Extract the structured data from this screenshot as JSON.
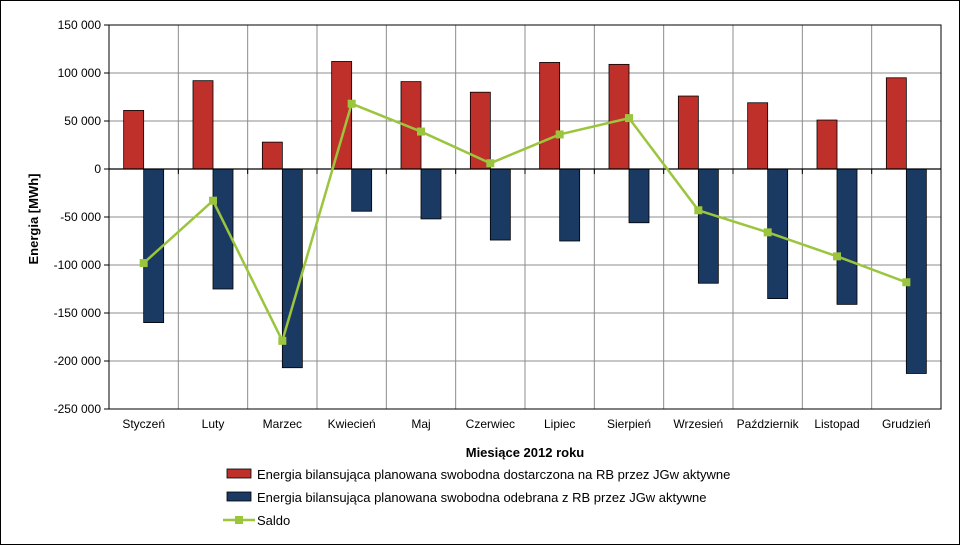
{
  "chart_data": {
    "type": "bar",
    "categories": [
      "Styczeń",
      "Luty",
      "Marzec",
      "Kwiecień",
      "Maj",
      "Czerwiec",
      "Lipiec",
      "Sierpień",
      "Wrzesień",
      "Październik",
      "Listopad",
      "Grudzień"
    ],
    "series": [
      {
        "name": "Energia bilansująca planowana swobodna dostarczona na RB przez JGw aktywne",
        "type": "bar",
        "color": "#C0302B",
        "values": [
          61000,
          92000,
          28000,
          112000,
          91000,
          80000,
          111000,
          109000,
          76000,
          69000,
          51000,
          95000
        ]
      },
      {
        "name": "Energia bilansująca planowana swobodna odebrana z RB przez JGw aktywne",
        "type": "bar",
        "color": "#1B3A63",
        "values": [
          -160000,
          -125000,
          -207000,
          -44000,
          -52000,
          -74000,
          -75000,
          -56000,
          -119000,
          -135000,
          -141000,
          -213000
        ]
      },
      {
        "name": "Saldo",
        "type": "line",
        "color": "#9BC53D",
        "values": [
          -98000,
          -33000,
          -179000,
          68000,
          39000,
          6000,
          36000,
          53000,
          -43000,
          -66000,
          -91000,
          -118000
        ]
      }
    ],
    "xlabel": "Miesiące 2012 roku",
    "ylabel": "Energia [MWh]",
    "ylim": [
      -250000,
      150000
    ],
    "ytick_labels": [
      "150 000",
      "100 000",
      "50 000",
      "0",
      "-50 000",
      "-100 000",
      "-150 000",
      "-200 000",
      "-250 000"
    ],
    "grid": true,
    "legend_position": "bottom"
  }
}
